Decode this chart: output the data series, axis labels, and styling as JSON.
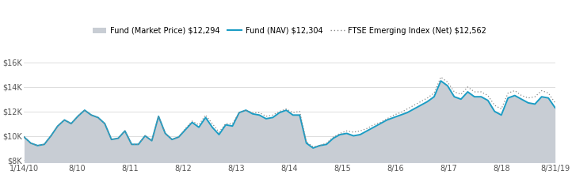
{
  "legend_entries": [
    "Fund (Market Price) $12,294",
    "Fund (NAV) $12,304",
    "FTSE Emerging Index (Net) $12,562"
  ],
  "x_labels": [
    "1/14/10",
    "8/10",
    "8/11",
    "8/12",
    "8/13",
    "8/14",
    "8/15",
    "8/16",
    "8/17",
    "8/18",
    "8/31/19"
  ],
  "y_ticks": [
    8000,
    10000,
    12000,
    14000,
    16000
  ],
  "y_tick_labels": [
    "$8K",
    "$10K",
    "$12K",
    "$14K",
    "$16K"
  ],
  "ylim": [
    7800,
    16800
  ],
  "fund_color": "#1b9cc4",
  "fill_color": "#c8cdd4",
  "dotted_color": "#888888",
  "background_color": "#ffffff",
  "grid_color": "#d8d8d8",
  "nav_data": [
    9900,
    9400,
    9200,
    9300,
    10000,
    10800,
    11300,
    11000,
    11600,
    12100,
    11700,
    11500,
    11000,
    9700,
    9800,
    10400,
    9300,
    9300,
    10000,
    9600,
    11600,
    10200,
    9700,
    9900,
    10500,
    11100,
    10700,
    11500,
    10700,
    10100,
    10900,
    10800,
    11900,
    12100,
    11800,
    11700,
    11400,
    11500,
    11900,
    12100,
    11700,
    11700,
    9400,
    9000,
    9200,
    9300,
    9800,
    10100,
    10200,
    10000,
    10100,
    10400,
    10700,
    11000,
    11300,
    11500,
    11700,
    11900,
    12200,
    12500,
    12800,
    13200,
    14500,
    14100,
    13200,
    13000,
    13600,
    13200,
    13200,
    12900,
    12000,
    11700,
    13100,
    13300,
    13000,
    12700,
    12600,
    13200,
    13100,
    12300
  ],
  "dotted_data": [
    9900,
    9400,
    9200,
    9300,
    10000,
    10800,
    11300,
    11000,
    11600,
    12100,
    11700,
    11500,
    11000,
    9700,
    9800,
    10400,
    9300,
    9300,
    10000,
    9600,
    11600,
    10200,
    9700,
    9900,
    10600,
    11200,
    10900,
    11700,
    11000,
    10300,
    11000,
    11000,
    11900,
    12100,
    11900,
    11900,
    11600,
    11700,
    12000,
    12200,
    11900,
    12000,
    9500,
    9100,
    9200,
    9400,
    9900,
    10200,
    10400,
    10300,
    10400,
    10600,
    10900,
    11100,
    11400,
    11700,
    11900,
    12200,
    12500,
    12800,
    13100,
    13500,
    14800,
    14400,
    13600,
    13400,
    14000,
    13600,
    13600,
    13300,
    12500,
    12200,
    13500,
    13700,
    13300,
    13100,
    13200,
    13700,
    13500,
    12700
  ]
}
